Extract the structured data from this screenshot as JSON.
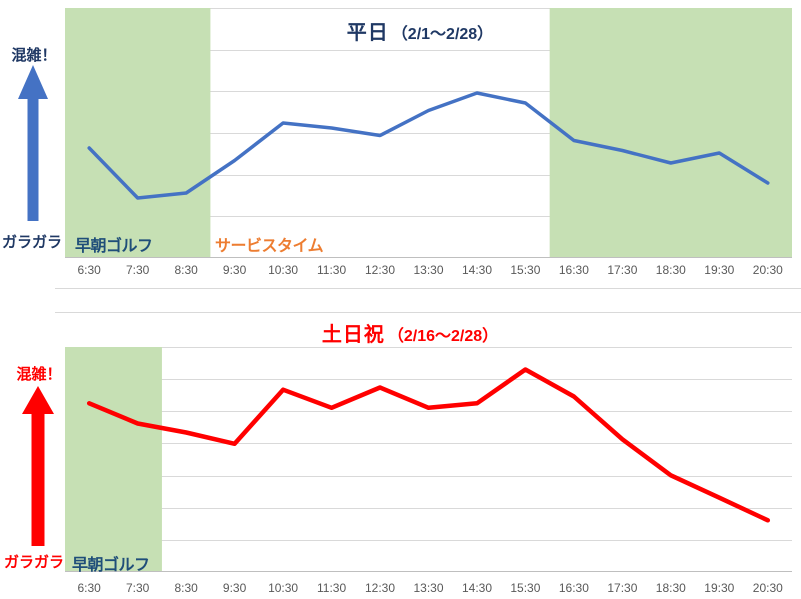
{
  "page": {
    "background": "#FFFFFF"
  },
  "chart_data": [
    {
      "type": "line",
      "title": "平日（2/1～2/28）",
      "title_main": "平日",
      "title_period": "（2/1～2/28）",
      "title_color": "#1F3864",
      "categories": [
        "6:30",
        "7:30",
        "8:30",
        "9:30",
        "10:30",
        "11:30",
        "12:30",
        "13:30",
        "14:30",
        "15:30",
        "16:30",
        "17:30",
        "18:30",
        "19:30",
        "20:30"
      ],
      "values": [
        44,
        24,
        26,
        39,
        54,
        52,
        49,
        59,
        66,
        62,
        47,
        43,
        38,
        42,
        30
      ],
      "ylim": [
        0,
        100
      ],
      "y_axis": {
        "numeric_ticks_visible": false,
        "top_label": "混雑！",
        "bottom_label": "ガラガラ"
      },
      "line_color": "#4472C4",
      "arrow_color": "#4472C4",
      "annotation_color": "#1F3864",
      "grid_color": "#D9D9D9",
      "axis_line_color": "#BFBFBF",
      "axis_label_color": "#595959",
      "grid": "horizontal",
      "legend": "none",
      "highlight_bands": [
        {
          "label": "早朝ゴルフ",
          "label_color": "#1F4E79",
          "color": "#C6E0B4",
          "slot_from": 0,
          "slot_to": 3
        },
        {
          "label": "サービスタイム",
          "label_color": "#ED7D31",
          "color": "none",
          "slot_from": 3,
          "slot_to": 10
        },
        {
          "label": "",
          "label_color": "",
          "color": "#C6E0B4",
          "slot_from": 10,
          "slot_to": 15
        }
      ]
    },
    {
      "type": "line",
      "title": "土日祝（2/16～2/28）",
      "title_main": "土日祝",
      "title_period": "（2/16～2/28）",
      "title_color": "#FF0000",
      "categories": [
        "6:30",
        "7:30",
        "8:30",
        "9:30",
        "10:30",
        "11:30",
        "12:30",
        "13:30",
        "14:30",
        "15:30",
        "16:30",
        "17:30",
        "18:30",
        "19:30",
        "20:30"
      ],
      "values": [
        75,
        66,
        62,
        57,
        81,
        73,
        82,
        73,
        75,
        90,
        78,
        59,
        43,
        33,
        23
      ],
      "ylim": [
        0,
        100
      ],
      "y_axis": {
        "numeric_ticks_visible": false,
        "top_label": "混雑！",
        "bottom_label": "ガラガラ"
      },
      "line_color": "#FF0000",
      "arrow_color": "#FF0000",
      "annotation_color": "#FF0000",
      "grid_color": "#D9D9D9",
      "axis_line_color": "#BFBFBF",
      "axis_label_color": "#595959",
      "grid": "horizontal",
      "legend": "none",
      "highlight_bands": [
        {
          "label": "早朝ゴルフ",
          "label_color": "#1F4E79",
          "color": "#C6E0B4",
          "slot_from": 0,
          "slot_to": 2
        }
      ]
    }
  ]
}
